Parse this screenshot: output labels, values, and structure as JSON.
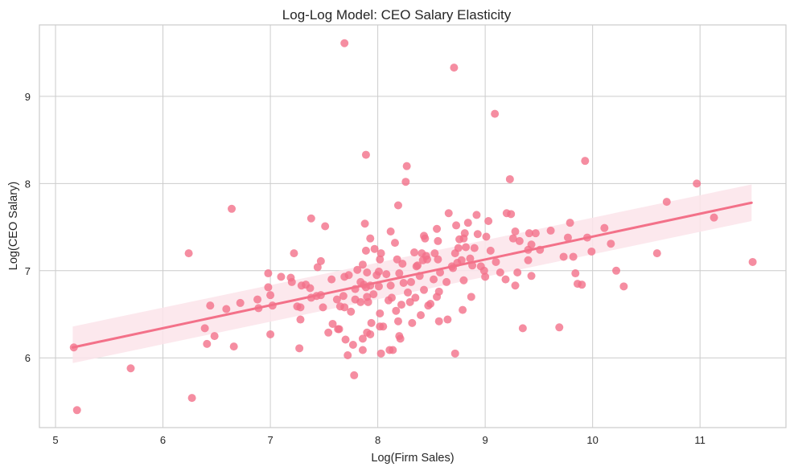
{
  "chart_data": {
    "type": "scatter",
    "title": "Log-Log Model: CEO Salary Elasticity",
    "xlabel": "Log(Firm Sales)",
    "ylabel": "Log(CEO Salary)",
    "xlim": [
      4.85,
      11.8
    ],
    "ylim": [
      5.2,
      9.82
    ],
    "xticks": [
      5,
      6,
      7,
      8,
      9,
      10,
      11
    ],
    "yticks": [
      6,
      7,
      8,
      9
    ],
    "xtick_labels": [
      "5",
      "6",
      "7",
      "8",
      "9",
      "10",
      "11"
    ],
    "ytick_labels": [
      "6",
      "7",
      "8",
      "9"
    ],
    "grid": true,
    "legend": "none",
    "colors": {
      "points": "#f37189",
      "line": "#f37189",
      "ci_band": "#fce4ea",
      "grid": "#cccccc",
      "text": "#262626"
    },
    "regression": {
      "x_start": 5.16,
      "y_start": 6.12,
      "x_end": 11.48,
      "y_end": 7.78,
      "ci_lower_start": 5.94,
      "ci_upper_start": 6.36,
      "ci_lower_end": 7.57,
      "ci_upper_end": 7.99,
      "slope": 0.263
    },
    "points": [
      [
        5.17,
        6.12
      ],
      [
        5.2,
        5.4
      ],
      [
        5.7,
        5.88
      ],
      [
        6.24,
        7.2
      ],
      [
        6.27,
        5.54
      ],
      [
        6.39,
        6.34
      ],
      [
        6.41,
        6.16
      ],
      [
        6.44,
        6.6
      ],
      [
        6.48,
        6.25
      ],
      [
        6.59,
        6.56
      ],
      [
        6.64,
        7.71
      ],
      [
        6.66,
        6.13
      ],
      [
        6.72,
        6.63
      ],
      [
        6.88,
        6.67
      ],
      [
        6.89,
        6.57
      ],
      [
        6.98,
        6.97
      ],
      [
        6.98,
        6.81
      ],
      [
        7.0,
        6.72
      ],
      [
        7.0,
        6.27
      ],
      [
        7.02,
        6.6
      ],
      [
        7.1,
        6.93
      ],
      [
        7.19,
        6.92
      ],
      [
        7.2,
        6.87
      ],
      [
        7.22,
        7.2
      ],
      [
        7.25,
        6.59
      ],
      [
        7.27,
        6.11
      ],
      [
        7.28,
        6.58
      ],
      [
        7.29,
        6.83
      ],
      [
        7.28,
        6.44
      ],
      [
        7.33,
        6.84
      ],
      [
        7.37,
        6.8
      ],
      [
        7.38,
        6.69
      ],
      [
        7.38,
        7.6
      ],
      [
        7.43,
        6.71
      ],
      [
        7.44,
        7.04
      ],
      [
        7.47,
        7.11
      ],
      [
        7.47,
        6.72
      ],
      [
        7.49,
        6.58
      ],
      [
        7.51,
        7.51
      ],
      [
        7.54,
        6.29
      ],
      [
        7.57,
        6.9
      ],
      [
        7.58,
        6.39
      ],
      [
        7.62,
        6.67
      ],
      [
        7.63,
        6.33
      ],
      [
        7.64,
        6.33
      ],
      [
        7.65,
        6.59
      ],
      [
        7.69,
        6.58
      ],
      [
        7.68,
        6.71
      ],
      [
        7.69,
        9.61
      ],
      [
        7.69,
        6.93
      ],
      [
        7.7,
        6.21
      ],
      [
        7.72,
        6.03
      ],
      [
        7.73,
        6.95
      ],
      [
        7.75,
        6.53
      ],
      [
        7.77,
        6.15
      ],
      [
        7.78,
        5.8
      ],
      [
        7.79,
        6.79
      ],
      [
        7.79,
        6.67
      ],
      [
        7.81,
        7.01
      ],
      [
        7.84,
        6.87
      ],
      [
        7.84,
        6.64
      ],
      [
        7.86,
        7.07
      ],
      [
        7.86,
        6.09
      ],
      [
        7.86,
        6.22
      ],
      [
        7.87,
        6.84
      ],
      [
        7.88,
        7.54
      ],
      [
        7.89,
        6.81
      ],
      [
        7.89,
        8.33
      ],
      [
        7.89,
        7.23
      ],
      [
        7.9,
        6.98
      ],
      [
        7.9,
        6.7
      ],
      [
        7.9,
        6.29
      ],
      [
        7.91,
        6.64
      ],
      [
        7.93,
        6.27
      ],
      [
        7.93,
        7.37
      ],
      [
        7.93,
        6.83
      ],
      [
        7.94,
        6.4
      ],
      [
        7.96,
        6.73
      ],
      [
        7.97,
        7.25
      ],
      [
        7.99,
        6.95
      ],
      [
        8.01,
        6.82
      ],
      [
        8.01,
        6.99
      ],
      [
        8.02,
        6.36
      ],
      [
        8.02,
        7.13
      ],
      [
        8.02,
        6.51
      ],
      [
        8.03,
        6.05
      ],
      [
        8.03,
        7.2
      ],
      [
        8.05,
        6.36
      ],
      [
        8.08,
        6.96
      ],
      [
        8.1,
        6.66
      ],
      [
        8.11,
        6.09
      ],
      [
        8.12,
        7.45
      ],
      [
        8.12,
        6.83
      ],
      [
        8.13,
        6.69
      ],
      [
        8.14,
        6.09
      ],
      [
        8.16,
        7.32
      ],
      [
        8.17,
        6.54
      ],
      [
        8.18,
        7.13
      ],
      [
        8.19,
        7.75
      ],
      [
        8.19,
        6.42
      ],
      [
        8.2,
        6.97
      ],
      [
        8.2,
        6.25
      ],
      [
        8.21,
        6.22
      ],
      [
        8.22,
        6.61
      ],
      [
        8.23,
        7.08
      ],
      [
        8.24,
        6.86
      ],
      [
        8.26,
        8.02
      ],
      [
        8.27,
        8.2
      ],
      [
        8.28,
        6.75
      ],
      [
        8.3,
        6.64
      ],
      [
        8.31,
        6.87
      ],
      [
        8.32,
        6.4
      ],
      [
        8.34,
        7.21
      ],
      [
        8.35,
        6.69
      ],
      [
        8.36,
        7.05
      ],
      [
        8.37,
        7.06
      ],
      [
        8.39,
        6.94
      ],
      [
        8.4,
        6.49
      ],
      [
        8.41,
        7.2
      ],
      [
        8.42,
        7.12
      ],
      [
        8.43,
        7.4
      ],
      [
        8.43,
        6.78
      ],
      [
        8.44,
        7.37
      ],
      [
        8.45,
        7.17
      ],
      [
        8.46,
        7.13
      ],
      [
        8.47,
        6.6
      ],
      [
        8.49,
        6.62
      ],
      [
        8.52,
        6.9
      ],
      [
        8.53,
        7.2
      ],
      [
        8.55,
        6.7
      ],
      [
        8.55,
        7.48
      ],
      [
        8.56,
        7.34
      ],
      [
        8.56,
        7.13
      ],
      [
        8.57,
        6.42
      ],
      [
        8.57,
        6.76
      ],
      [
        8.58,
        6.98
      ],
      [
        8.64,
        6.87
      ],
      [
        8.65,
        6.44
      ],
      [
        8.66,
        7.66
      ],
      [
        8.69,
        7.05
      ],
      [
        8.7,
        7.03
      ],
      [
        8.71,
        9.33
      ],
      [
        8.72,
        7.2
      ],
      [
        8.72,
        6.05
      ],
      [
        8.73,
        7.52
      ],
      [
        8.74,
        7.09
      ],
      [
        8.75,
        7.26
      ],
      [
        8.76,
        7.36
      ],
      [
        8.78,
        7.12
      ],
      [
        8.79,
        6.55
      ],
      [
        8.8,
        7.37
      ],
      [
        8.8,
        6.89
      ],
      [
        8.81,
        7.43
      ],
      [
        8.82,
        7.27
      ],
      [
        8.84,
        7.55
      ],
      [
        8.86,
        7.14
      ],
      [
        8.87,
        6.7
      ],
      [
        8.88,
        7.06
      ],
      [
        8.9,
        7.26
      ],
      [
        8.92,
        7.64
      ],
      [
        8.93,
        7.42
      ],
      [
        8.96,
        7.05
      ],
      [
        8.99,
        7.0
      ],
      [
        9.0,
        6.93
      ],
      [
        9.01,
        7.39
      ],
      [
        9.03,
        7.57
      ],
      [
        9.05,
        7.23
      ],
      [
        9.09,
        8.8
      ],
      [
        9.1,
        7.1
      ],
      [
        9.14,
        6.98
      ],
      [
        9.19,
        6.9
      ],
      [
        9.2,
        7.66
      ],
      [
        9.23,
        8.05
      ],
      [
        9.24,
        7.65
      ],
      [
        9.26,
        7.37
      ],
      [
        9.28,
        6.83
      ],
      [
        9.28,
        7.45
      ],
      [
        9.3,
        6.98
      ],
      [
        9.32,
        7.34
      ],
      [
        9.35,
        6.34
      ],
      [
        9.4,
        7.24
      ],
      [
        9.4,
        7.12
      ],
      [
        9.41,
        7.43
      ],
      [
        9.43,
        7.3
      ],
      [
        9.43,
        6.94
      ],
      [
        9.47,
        7.43
      ],
      [
        9.51,
        7.24
      ],
      [
        9.61,
        7.46
      ],
      [
        9.69,
        6.35
      ],
      [
        9.73,
        7.16
      ],
      [
        9.77,
        7.38
      ],
      [
        9.79,
        7.55
      ],
      [
        9.82,
        7.16
      ],
      [
        9.84,
        6.97
      ],
      [
        9.86,
        6.85
      ],
      [
        9.9,
        6.84
      ],
      [
        9.93,
        8.26
      ],
      [
        9.95,
        7.38
      ],
      [
        9.99,
        7.22
      ],
      [
        10.11,
        7.49
      ],
      [
        10.17,
        7.31
      ],
      [
        10.22,
        7.0
      ],
      [
        10.29,
        6.82
      ],
      [
        10.6,
        7.2
      ],
      [
        10.69,
        7.79
      ],
      [
        10.97,
        8.0
      ],
      [
        11.13,
        7.61
      ],
      [
        11.49,
        7.1
      ]
    ]
  }
}
